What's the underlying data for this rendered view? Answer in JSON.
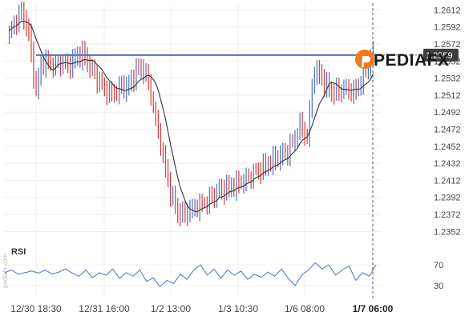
{
  "chart_data": [
    {
      "type": "candlestick",
      "title": "",
      "price_axis": {
        "ticks": [
          "1.2612",
          "1.2592",
          "1.2572",
          "1.2552",
          "1.2532",
          "1.2512",
          "1.2492",
          "1.2472",
          "1.2452",
          "1.2432",
          "1.2412",
          "1.2392",
          "1.2372",
          "1.2352"
        ],
        "ylim": [
          1.2342,
          1.2618
        ]
      },
      "x_ticks": [
        {
          "label": "12/30 18:30",
          "bold": false
        },
        {
          "label": "12/31 16:00",
          "bold": false
        },
        {
          "label": "1/2 13:00",
          "bold": false
        },
        {
          "label": "1/3 10:30",
          "bold": false
        },
        {
          "label": "1/6 08:00",
          "bold": false
        },
        {
          "label": "1/7 06:00",
          "bold": true
        }
      ],
      "horizontal_line": {
        "value": 1.2559,
        "color": "#4a72c4"
      },
      "current_price_label": "1.2559",
      "series_colors": {
        "up": "#4a72c4",
        "down": "#d93a3a",
        "moving_average": "#333333"
      },
      "close_path": [
        1.2585,
        1.26,
        1.261,
        1.258,
        1.2515,
        1.2552,
        1.255,
        1.2548,
        1.2552,
        1.2546,
        1.2555,
        1.256,
        1.2548,
        1.2535,
        1.2525,
        1.2515,
        1.2515,
        1.2522,
        1.252,
        1.2538,
        1.2545,
        1.253,
        1.249,
        1.245,
        1.241,
        1.238,
        1.237,
        1.2375,
        1.238,
        1.2385,
        1.2388,
        1.2395,
        1.24,
        1.2402,
        1.2405,
        1.241,
        1.2415,
        1.2422,
        1.2425,
        1.243,
        1.2435,
        1.244,
        1.2445,
        1.246,
        1.248,
        1.246,
        1.254,
        1.2535,
        1.252,
        1.2515,
        1.2518,
        1.2522,
        1.2515,
        1.2525,
        1.2545,
        1.2559
      ]
    },
    {
      "type": "line",
      "title": "RSI",
      "y_ticks": [
        "70",
        "30"
      ],
      "ylim": [
        10,
        90
      ],
      "line_color": "#4a72c4",
      "values": [
        55,
        60,
        52,
        55,
        58,
        54,
        60,
        52,
        56,
        62,
        54,
        48,
        60,
        45,
        55,
        50,
        62,
        44,
        55,
        48,
        60,
        38,
        45,
        28,
        40,
        34,
        52,
        42,
        60,
        70,
        50,
        62,
        44,
        60,
        50,
        58,
        42,
        52,
        46,
        56,
        48,
        62,
        44,
        30,
        50,
        60,
        74,
        62,
        70,
        50,
        60,
        68,
        40,
        55,
        48,
        70
      ]
    }
  ],
  "watermark_text": "pediafx.com",
  "logo": {
    "text": "PEDIAFX",
    "mark_colors": [
      "#f07a1a",
      "#e8591a"
    ]
  }
}
